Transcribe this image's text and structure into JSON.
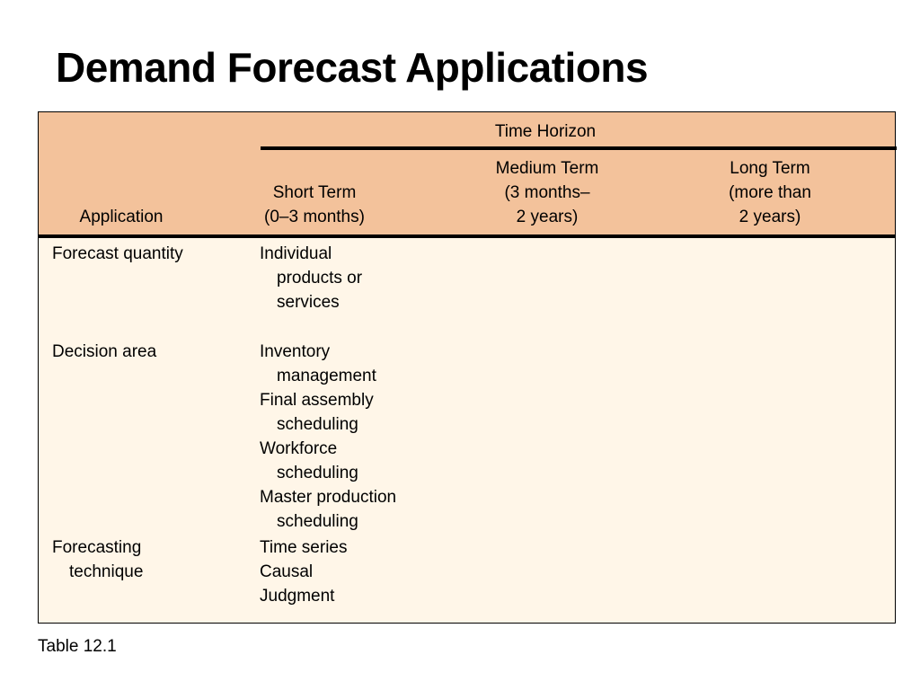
{
  "title": "Demand Forecast Applications",
  "table": {
    "spanning_header": "Time Horizon",
    "columns": {
      "application": "Application",
      "short": [
        "Short Term",
        "(0–3 months)"
      ],
      "medium": [
        "Medium Term",
        "(3 months–",
        "2 years)"
      ],
      "long": [
        "Long Term",
        "(more than",
        "2 years)"
      ]
    },
    "rows": [
      {
        "application": [
          "Forecast quantity"
        ],
        "short": [
          "Individual",
          "products or",
          "services"
        ]
      },
      {
        "application": [
          "Decision area"
        ],
        "short": [
          "Inventory",
          "management",
          "Final assembly",
          "scheduling",
          "Workforce",
          "scheduling",
          "Master production",
          "scheduling"
        ]
      },
      {
        "application": [
          "Forecasting",
          "technique"
        ],
        "short": [
          "Time series",
          "Causal",
          "Judgment"
        ]
      }
    ]
  },
  "caption": "Table 12.1",
  "colors": {
    "header_fill": "#f3c29b",
    "body_fill": "#fff6e8",
    "rule": "#000000"
  }
}
